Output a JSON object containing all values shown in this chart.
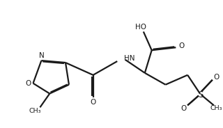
{
  "bg_color": "#ffffff",
  "line_color": "#1a1a1a",
  "line_width": 1.6,
  "doff": 0.012,
  "figsize": [
    3.2,
    1.84
  ],
  "dpi": 100,
  "xlim": [
    0,
    3.2
  ],
  "ylim": [
    0,
    1.84
  ]
}
